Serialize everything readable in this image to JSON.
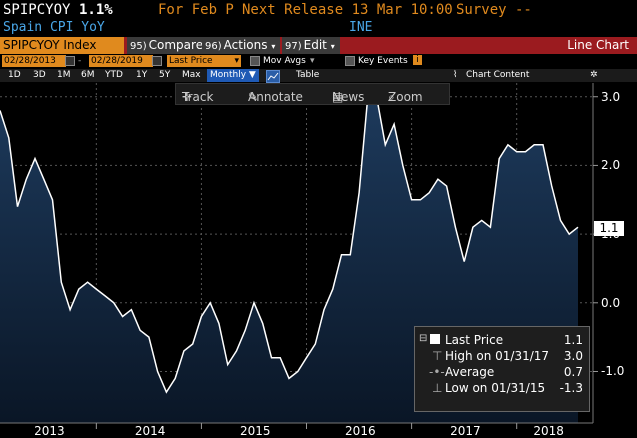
{
  "header": {
    "ticker": "SPIPCYOY",
    "value": "1.1%",
    "for_label": "For Feb P",
    "next_release": "Next Release 13 Mar 10:00",
    "survey": "Survey --",
    "subtitle": "Spain CPI YoY",
    "source": "INE"
  },
  "toolbar": {
    "index_label": "SPIPCYOY Index",
    "compare_num": "95)",
    "compare_label": "Compare",
    "actions_num": "96)",
    "actions_label": "Actions",
    "edit_num": "97)",
    "edit_label": "Edit",
    "view_title": "Line Chart"
  },
  "range": {
    "start_date": "02/28/2013",
    "end_date": "02/28/2019",
    "price_field": "Last Price",
    "mov_avgs": "Mov Avgs",
    "key_events": "Key Events"
  },
  "periods": {
    "items": [
      "1D",
      "3D",
      "1M",
      "6M",
      "YTD",
      "1Y",
      "5Y",
      "Max"
    ],
    "frequency": "Monthly",
    "table": "Table",
    "chart_content": "Chart Content"
  },
  "chart_tools": {
    "track": "Track",
    "annotate": "Annotate",
    "news": "News",
    "zoom": "Zoom"
  },
  "legend": {
    "last_price_label": "Last Price",
    "last_price_value": "1.1",
    "high_label": "High on 01/31/17",
    "high_value": "3.0",
    "average_label": "Average",
    "average_value": "0.7",
    "low_label": "Low on 01/31/15",
    "low_value": "-1.3"
  },
  "last_value_tag": "1.1",
  "colors": {
    "accent_orange": "#e08a1e",
    "bar_red": "#9b1b1f",
    "line": "#ffffff",
    "area_top": "#1d3a5c",
    "area_bottom": "#0a1626"
  },
  "chart_data": {
    "type": "area",
    "series": [
      {
        "values": [
          2.8,
          2.4,
          1.4,
          1.8,
          2.1,
          1.8,
          1.5,
          0.3,
          -0.1,
          0.2,
          0.3,
          0.2,
          0.1,
          0.0,
          -0.2,
          -0.1,
          -0.4,
          -0.5,
          -1.0,
          -1.3,
          -1.1,
          -0.7,
          -0.6,
          -0.2,
          0.0,
          -0.3,
          -0.9,
          -0.7,
          -0.4,
          0.0,
          -0.3,
          -0.8,
          -0.8,
          -1.1,
          -1.0,
          -0.8,
          -0.6,
          -0.1,
          0.2,
          0.7,
          0.7,
          1.6,
          3.0,
          3.0,
          2.3,
          2.6,
          2.0,
          1.5,
          1.5,
          1.6,
          1.8,
          1.7,
          1.1,
          0.6,
          1.1,
          1.2,
          1.1,
          2.1,
          2.3,
          2.2,
          2.2,
          2.3,
          2.3,
          1.7,
          1.2,
          1.0,
          1.1
        ]
      }
    ],
    "x_labels": [
      "2013",
      "2014",
      "2015",
      "2016",
      "2017",
      "2018"
    ],
    "y_ticks": [
      "3.0",
      "2.0",
      "1.0",
      "0.0",
      "-1.0"
    ],
    "ylim": [
      -1.75,
      3.2
    ],
    "grid": true
  }
}
